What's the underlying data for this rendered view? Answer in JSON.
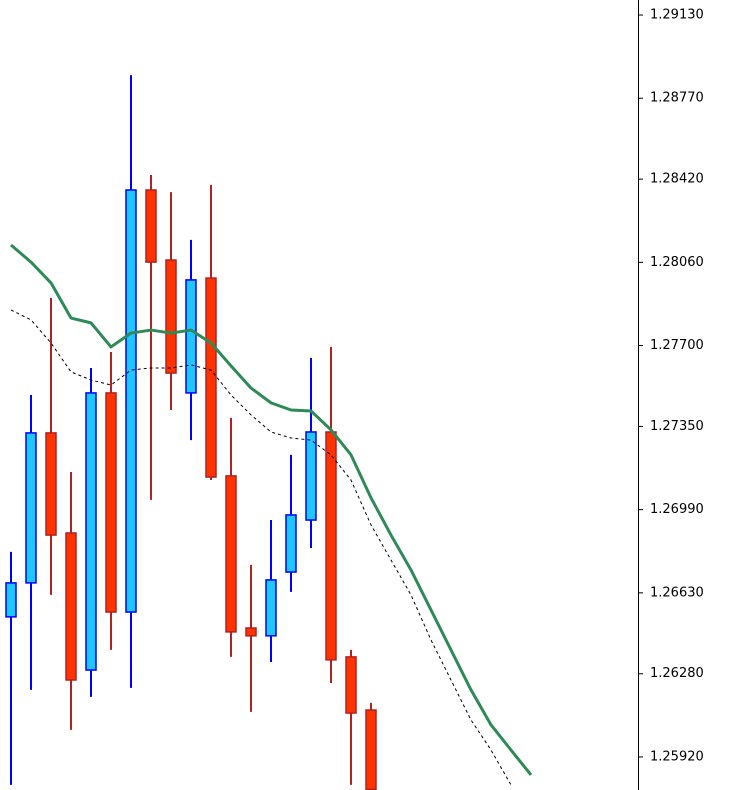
{
  "chart_data": {
    "type": "candlestick",
    "open": [
      1.26526,
      1.26673,
      1.27322,
      1.26889,
      1.26296,
      1.27495,
      1.26547,
      1.28373,
      1.2807,
      1.27495,
      1.27992,
      1.27136,
      1.26478,
      1.26444,
      1.2672,
      1.26945,
      1.27326,
      1.26353,
      1.26123,
      null,
      null,
      null,
      null,
      null,
      null,
      null,
      null,
      null
    ],
    "high": [
      1.26807,
      1.27486,
      1.27906,
      1.27153,
      1.27603,
      1.27672,
      1.2887,
      1.28438,
      1.28364,
      1.28157,
      1.28395,
      1.27387,
      1.26751,
      1.26945,
      1.27227,
      1.27646,
      1.27694,
      1.26383,
      1.26154,
      null,
      null,
      null,
      null,
      null,
      null,
      null,
      null,
      null
    ],
    "low": [
      1.25799,
      1.2621,
      1.26621,
      1.26037,
      1.2618,
      1.26383,
      1.26219,
      1.27032,
      1.27421,
      1.27291,
      1.27118,
      1.26353,
      1.26115,
      1.26331,
      1.26634,
      1.26824,
      1.2624,
      1.25799,
      1.2578,
      null,
      null,
      null,
      null,
      null,
      null,
      null,
      null,
      null
    ],
    "close": [
      1.26673,
      1.27322,
      1.2688,
      1.26253,
      1.27495,
      1.26547,
      1.28373,
      1.28061,
      1.27581,
      1.27984,
      1.27131,
      1.26461,
      1.26444,
      1.26686,
      1.26967,
      1.27326,
      1.2634,
      1.2611,
      1.2578,
      null,
      null,
      null,
      null,
      null,
      null,
      null,
      null,
      null
    ],
    "colors": {
      "up_body": "#1ec8ff",
      "up_edge": "#0000ff",
      "down_body": "#ff3300",
      "down_edge": "#b22222"
    },
    "series": [
      {
        "color": "#2e8b57",
        "dashed": false,
        "values": [
          1.28135,
          1.28061,
          1.27971,
          1.27819,
          1.27798,
          1.27694,
          1.27754,
          1.27767,
          1.27754,
          1.27767,
          1.27711,
          1.27612,
          1.27516,
          1.27452,
          1.27421,
          1.27417,
          1.27335,
          1.27227,
          1.27041,
          1.2688,
          1.26729,
          1.26556,
          1.26383,
          1.2621,
          1.26059,
          1.2595,
          1.25842,
          null
        ]
      },
      {
        "color": "#000000",
        "dashed": true,
        "values": [
          1.27854,
          1.27811,
          1.27711,
          1.27586,
          1.27551,
          1.27529,
          1.27594,
          1.27603,
          1.27603,
          1.27616,
          1.27594,
          1.27486,
          1.274,
          1.27326,
          1.273,
          1.27291,
          1.27227,
          1.27118,
          1.26924,
          1.26772,
          1.26621,
          1.26426,
          1.26253,
          1.2608,
          1.2595,
          1.25799,
          null,
          null
        ]
      }
    ],
    "ylim": [
      1.25777,
      1.29195
    ],
    "yticks": [
      {
        "value": 1.2913,
        "label": "1.29130"
      },
      {
        "value": 1.2877,
        "label": "1.28770"
      },
      {
        "value": 1.2842,
        "label": "1.28420"
      },
      {
        "value": 1.2806,
        "label": "1.28060"
      },
      {
        "value": 1.277,
        "label": "1.27700"
      },
      {
        "value": 1.2735,
        "label": "1.27350"
      },
      {
        "value": 1.2699,
        "label": "1.26990"
      },
      {
        "value": 1.2663,
        "label": "1.26630"
      },
      {
        "value": 1.2628,
        "label": "1.26280"
      },
      {
        "value": 1.2592,
        "label": "1.25920"
      }
    ],
    "grid": false
  }
}
